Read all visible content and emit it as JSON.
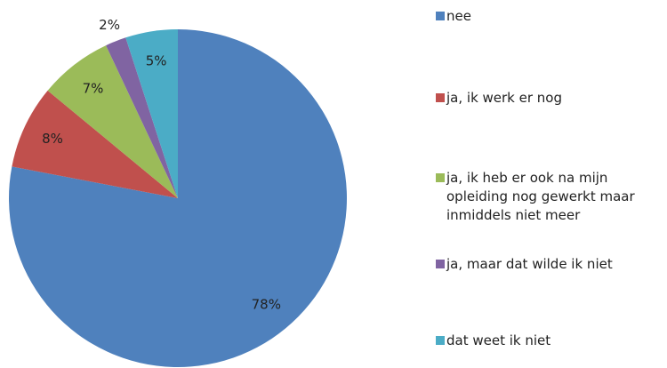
{
  "chart_data": {
    "type": "pie",
    "categories": [
      "nee",
      "ja, ik werk er nog",
      "ja, ik heb er ook na mijn opleiding nog gewerkt maar inmiddels niet meer",
      "ja, maar dat wilde ik niet",
      "dat weet ik niet"
    ],
    "values": [
      78,
      8,
      7,
      2,
      5
    ],
    "value_labels": [
      "78%",
      "8%",
      "7%",
      "2%",
      "5%"
    ],
    "colors": [
      "#4f81bd",
      "#c0504d",
      "#9bbb59",
      "#8064a2",
      "#4bacc6"
    ]
  }
}
